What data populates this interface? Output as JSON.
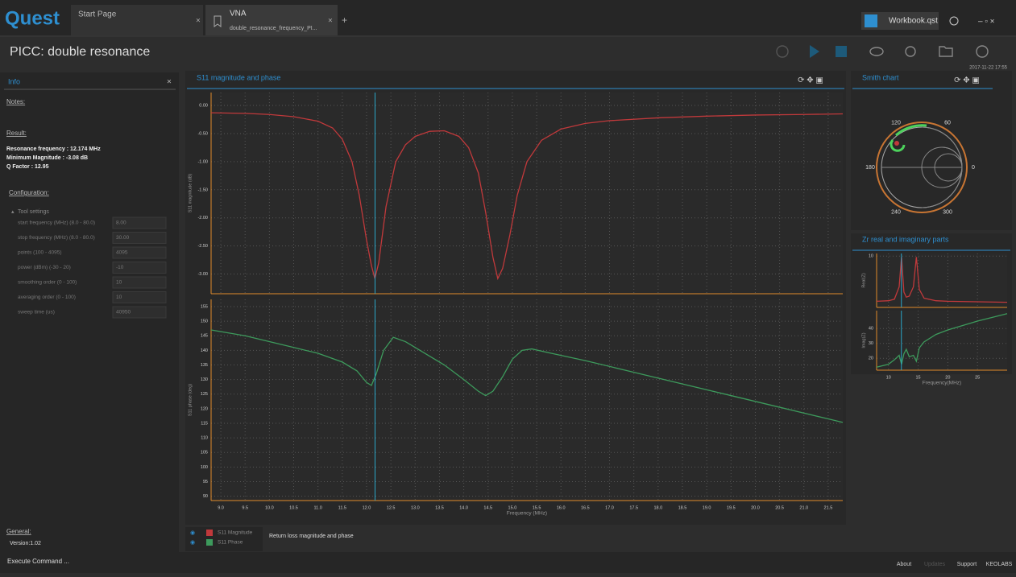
{
  "header": {
    "logo": "Quest",
    "tabs": [
      {
        "label": "Start Page"
      },
      {
        "label": "VNA",
        "subtitle": "double_resonance_frequency_PI..."
      }
    ],
    "workbook": "Workbook.qst",
    "page_title": "PICC: double resonance",
    "timestamp": "2017-11-22 17:55"
  },
  "info": {
    "title": "Info",
    "notes": "Notes:",
    "result": "Result:",
    "result_lines": [
      "Resonance frequency : 12.174 MHz",
      "Minimum Magnitude : -3.08 dB",
      "Q Factor : 12.95"
    ],
    "configuration": "Configuration:",
    "tool_settings": "Tool settings",
    "fields": [
      {
        "label": "start frequency (MHz) (8.0 - 80.0)",
        "value": "8.00"
      },
      {
        "label": "stop frequency (MHz) (8.0 - 80.0)",
        "value": "30.00"
      },
      {
        "label": "points (100 - 4095)",
        "value": "4095"
      },
      {
        "label": "power (dBm) (-30 - 20)",
        "value": "-10"
      },
      {
        "label": "smoothing order (0 - 100)",
        "value": "10"
      },
      {
        "label": "averaging order (0 - 100)",
        "value": "10"
      },
      {
        "label": "sweep time (us)",
        "value": "40950"
      }
    ],
    "general": "General:",
    "version": "Version:1.02"
  },
  "panels": {
    "main_title": "S11 magnitude and phase",
    "legend_caption": "Return loss magnitude and phase",
    "smith_title": "Smith chart",
    "zr_title": "Zr real and imaginary parts"
  },
  "smith": {
    "labels": [
      "120",
      "60",
      "180",
      "0",
      "240",
      "300"
    ]
  },
  "chart_data": [
    {
      "type": "line",
      "y_label": "S11 magnitude (dB)",
      "grid": true,
      "cursor_x": 12.174,
      "xlim": [
        8.8,
        21.8
      ],
      "ylim": [
        -3.35,
        0.23
      ],
      "yticks": [
        {
          "value": 0,
          "label": "0.00"
        },
        {
          "value": -0.5,
          "label": "-0.50"
        },
        {
          "value": -1,
          "label": "-1.00"
        },
        {
          "value": -1.5,
          "label": "-1.50"
        },
        {
          "value": -2,
          "label": "-2.00"
        },
        {
          "value": -2.5,
          "label": "-2.50"
        },
        {
          "value": -3,
          "label": "-3.00"
        }
      ],
      "x": [
        8.8,
        9.5,
        10.0,
        10.5,
        11.0,
        11.3,
        11.5,
        11.7,
        11.85,
        12.0,
        12.1,
        12.17,
        12.25,
        12.4,
        12.6,
        12.8,
        13.0,
        13.3,
        13.6,
        13.9,
        14.1,
        14.3,
        14.45,
        14.6,
        14.7,
        14.8,
        14.95,
        15.1,
        15.3,
        15.6,
        16.0,
        16.5,
        17.0,
        18.0,
        19.0,
        20.0,
        21.0,
        21.8
      ],
      "series": [
        {
          "name": "S11 Magnitude",
          "color": "#c0393b",
          "values": [
            -0.13,
            -0.14,
            -0.16,
            -0.2,
            -0.28,
            -0.4,
            -0.6,
            -1.0,
            -1.6,
            -2.4,
            -2.85,
            -3.08,
            -2.8,
            -1.8,
            -1.0,
            -0.7,
            -0.55,
            -0.46,
            -0.45,
            -0.55,
            -0.75,
            -1.2,
            -1.9,
            -2.7,
            -3.08,
            -2.9,
            -2.3,
            -1.6,
            -1.0,
            -0.62,
            -0.42,
            -0.32,
            -0.27,
            -0.22,
            -0.19,
            -0.17,
            -0.16,
            -0.15
          ]
        }
      ]
    },
    {
      "type": "line",
      "y_label": "S11 phase (deg)",
      "x_label": "Frequency (MHz)",
      "grid": true,
      "cursor_x": 12.174,
      "xlim": [
        8.8,
        21.8
      ],
      "ylim": [
        88.5,
        157.5
      ],
      "yticks": [
        90,
        95,
        100,
        105,
        110,
        115,
        120,
        125,
        130,
        135,
        140,
        145,
        150,
        155
      ],
      "xticks": [
        {
          "value": 9,
          "label": "9.0"
        },
        {
          "value": 9.5,
          "label": "9.5"
        },
        {
          "value": 10,
          "label": "10.0"
        },
        {
          "value": 10.5,
          "label": "10.5"
        },
        {
          "value": 11,
          "label": "11.0"
        },
        {
          "value": 11.5,
          "label": "11.5"
        },
        {
          "value": 12,
          "label": "12.0"
        },
        {
          "value": 12.5,
          "label": "12.5"
        },
        {
          "value": 13,
          "label": "13.0"
        },
        {
          "value": 13.5,
          "label": "13.5"
        },
        {
          "value": 14,
          "label": "14.0"
        },
        {
          "value": 14.5,
          "label": "14.5"
        },
        {
          "value": 15,
          "label": "15.0"
        },
        {
          "value": 15.5,
          "label": "15.5"
        },
        {
          "value": 16,
          "label": "16.0"
        },
        {
          "value": 16.5,
          "label": "16.5"
        },
        {
          "value": 17,
          "label": "17.0"
        },
        {
          "value": 17.5,
          "label": "17.5"
        },
        {
          "value": 18,
          "label": "18.0"
        },
        {
          "value": 18.5,
          "label": "18.5"
        },
        {
          "value": 19,
          "label": "19.0"
        },
        {
          "value": 19.5,
          "label": "19.5"
        },
        {
          "value": 20,
          "label": "20.0"
        },
        {
          "value": 20.5,
          "label": "20.5"
        },
        {
          "value": 21,
          "label": "21.0"
        },
        {
          "value": 21.5,
          "label": "21.5"
        }
      ],
      "x": [
        8.8,
        9.5,
        10.0,
        10.5,
        11.0,
        11.5,
        11.8,
        12.0,
        12.1,
        12.2,
        12.35,
        12.55,
        12.8,
        13.2,
        13.6,
        14.0,
        14.3,
        14.45,
        14.6,
        14.8,
        15.0,
        15.2,
        15.4,
        15.8,
        16.5,
        17.5,
        18.5,
        19.5,
        20.5,
        21.5,
        21.8
      ],
      "series": [
        {
          "name": "S11 Phase",
          "color": "#3d9a5c",
          "values": [
            147,
            145,
            143,
            141,
            139,
            136,
            133,
            129,
            128,
            132,
            140,
            144.5,
            143,
            139,
            135,
            130,
            126,
            124.5,
            126,
            131,
            137,
            140,
            140.5,
            139,
            136.5,
            132.5,
            128.5,
            124.5,
            120.5,
            116.5,
            115.3
          ]
        }
      ]
    },
    {
      "type": "line",
      "y_label": "Real(Z)",
      "grid": true,
      "cursor_x": 12.174,
      "xlim": [
        8,
        30
      ],
      "ylim": [
        0,
        10.5
      ],
      "yticks": [
        10
      ],
      "x": [
        8,
        10,
        11,
        11.8,
        12.2,
        12.6,
        13,
        13.5,
        14.2,
        14.7,
        15.2,
        16,
        18,
        20,
        25,
        30
      ],
      "series": [
        {
          "name": "Real",
          "color": "#c0393b",
          "values": [
            1.2,
            1.3,
            1.6,
            4,
            9.8,
            3,
            2,
            2.2,
            4,
            9.8,
            3.5,
            1.8,
            1.3,
            1.2,
            1.1,
            1.0
          ]
        }
      ]
    },
    {
      "type": "line",
      "y_label": "Imag(Z)",
      "x_label": "Frequency(MHz)",
      "grid": true,
      "cursor_x": 12.174,
      "xlim": [
        8,
        30
      ],
      "ylim": [
        12,
        52
      ],
      "yticks": [
        20,
        30,
        40
      ],
      "xticks": [
        10,
        15,
        20,
        25
      ],
      "x": [
        8,
        10,
        11,
        11.8,
        12.2,
        12.6,
        13,
        13.5,
        14.2,
        14.7,
        15.2,
        16,
        18,
        20,
        25,
        30
      ],
      "series": [
        {
          "name": "Imag",
          "color": "#3d9a5c",
          "values": [
            14,
            16,
            19,
            22,
            16,
            23,
            26,
            21,
            22,
            18,
            27,
            31,
            36,
            39,
            45,
            50
          ]
        }
      ]
    }
  ],
  "footer": {
    "command": "Execute Command ...",
    "links": [
      "About",
      "Updates",
      "Support",
      "KEOLABS"
    ]
  }
}
